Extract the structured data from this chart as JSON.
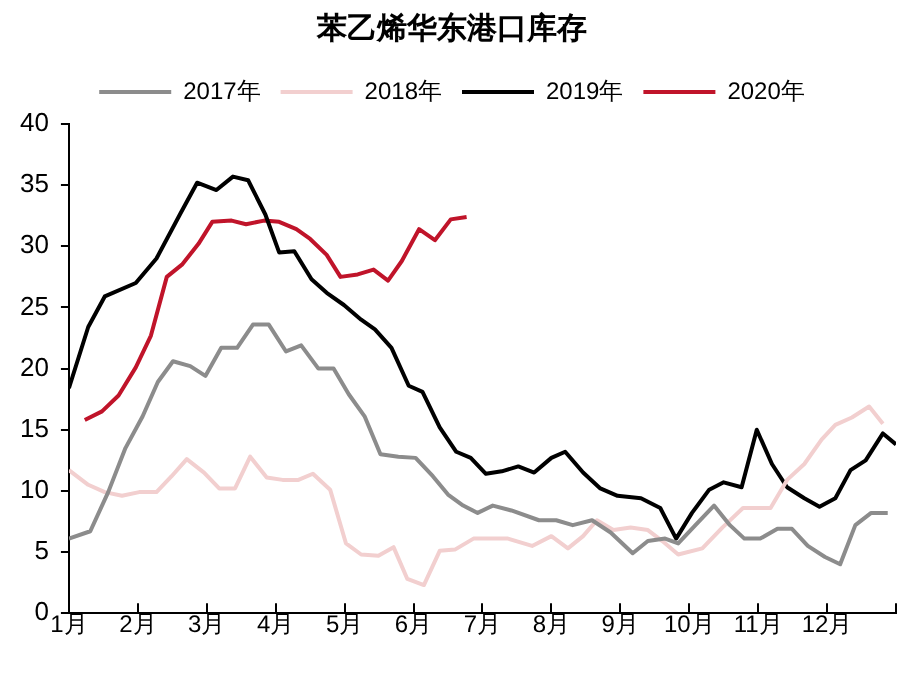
{
  "chart_data": {
    "type": "line",
    "title": "苯乙烯华东港口库存",
    "legend": "top",
    "grid": false,
    "marker": "none",
    "line_style": "solid",
    "xlim": [
      1,
      13
    ],
    "xticks": [
      {
        "value": 1,
        "label": "1月"
      },
      {
        "value": 2,
        "label": "2月"
      },
      {
        "value": 3,
        "label": "3月"
      },
      {
        "value": 4,
        "label": "4月"
      },
      {
        "value": 5,
        "label": "5月"
      },
      {
        "value": 6,
        "label": "6月"
      },
      {
        "value": 7,
        "label": "7月"
      },
      {
        "value": 8,
        "label": "8月"
      },
      {
        "value": 9,
        "label": "9月"
      },
      {
        "value": 10,
        "label": "10月"
      },
      {
        "value": 11,
        "label": "11月"
      },
      {
        "value": 12,
        "label": "12月"
      },
      {
        "value": 13,
        "label": null
      }
    ],
    "ylim": [
      0,
      40
    ],
    "yticks": [
      0,
      5,
      10,
      15,
      20,
      25,
      30,
      35,
      40
    ],
    "series": [
      {
        "name": "2017年",
        "color": "#8c8c8c",
        "x": [
          1,
          1.31,
          1.57,
          1.82,
          2.07,
          2.29,
          2.51,
          2.76,
          2.98,
          3.21,
          3.44,
          3.67,
          3.9,
          4.15,
          4.37,
          4.62,
          4.84,
          5.06,
          5.29,
          5.52,
          5.78,
          6.03,
          6.28,
          6.5,
          6.72,
          6.93,
          7.15,
          7.42,
          7.82,
          8.07,
          8.31,
          8.59,
          8.86,
          9.18,
          9.4,
          9.65,
          9.84,
          10.09,
          10.36,
          10.59,
          10.8,
          11.03,
          11.28,
          11.49,
          11.72,
          11.97,
          12.19,
          12.41,
          12.64,
          12.88
        ],
        "values": [
          6.1,
          6.7,
          9.9,
          13.5,
          16.1,
          18.9,
          20.6,
          20.2,
          19.4,
          21.7,
          21.7,
          23.6,
          23.6,
          21.4,
          21.9,
          20,
          20,
          17.9,
          16.1,
          13,
          12.8,
          12.7,
          11.2,
          9.7,
          8.8,
          8.2,
          8.8,
          8.4,
          7.6,
          7.6,
          7.2,
          7.6,
          6.6,
          4.9,
          5.9,
          6.1,
          5.7,
          7.2,
          8.8,
          7.2,
          6.1,
          6.1,
          6.9,
          6.9,
          5.5,
          4.6,
          4,
          7.2,
          8.2,
          8.2
        ]
      },
      {
        "name": "2018年",
        "color": "#f2cfcf",
        "x": [
          1,
          1.28,
          1.52,
          1.77,
          2.02,
          2.27,
          2.49,
          2.71,
          2.96,
          3.18,
          3.41,
          3.63,
          3.87,
          4.1,
          4.33,
          4.54,
          4.79,
          5.02,
          5.24,
          5.49,
          5.71,
          5.91,
          6.15,
          6.38,
          6.6,
          6.87,
          7.08,
          7.37,
          7.72,
          8,
          8.24,
          8.46,
          8.66,
          8.9,
          9.15,
          9.4,
          9.61,
          9.84,
          10.19,
          10.48,
          10.78,
          11.18,
          11.42,
          11.67,
          11.92,
          12.12,
          12.36,
          12.61,
          12.81
        ],
        "values": [
          11.7,
          10.5,
          9.9,
          9.6,
          9.9,
          9.9,
          11.2,
          12.6,
          11.5,
          10.2,
          10.2,
          12.8,
          11.1,
          10.9,
          10.9,
          11.4,
          10.1,
          5.7,
          4.8,
          4.7,
          5.4,
          2.8,
          2.3,
          5.1,
          5.2,
          6.1,
          6.1,
          6.1,
          5.5,
          6.3,
          5.3,
          6.3,
          7.6,
          6.8,
          7,
          6.8,
          5.9,
          4.8,
          5.3,
          7,
          8.6,
          8.6,
          10.9,
          12.2,
          14.2,
          15.4,
          16,
          16.9,
          15.5
        ]
      },
      {
        "name": "2019年",
        "color": "#000000",
        "x": [
          1,
          1.28,
          1.52,
          1.97,
          2.27,
          2.61,
          2.86,
          3.14,
          3.38,
          3.6,
          3.85,
          4.05,
          4.27,
          4.52,
          4.74,
          4.99,
          5.24,
          5.44,
          5.68,
          5.93,
          6.13,
          6.38,
          6.62,
          6.83,
          7.05,
          7.28,
          7.52,
          7.75,
          8,
          8.2,
          8.46,
          8.71,
          8.96,
          9.3,
          9.58,
          9.81,
          10.04,
          10.29,
          10.5,
          10.76,
          10.98,
          11.2,
          11.42,
          11.67,
          11.89,
          12.12,
          12.34,
          12.56,
          12.81,
          13
        ],
        "values": [
          18.4,
          23.4,
          25.9,
          27,
          29,
          32.6,
          35.2,
          34.6,
          35.7,
          35.4,
          32.6,
          29.5,
          29.6,
          27.3,
          26.2,
          25.2,
          24,
          23.2,
          21.7,
          18.6,
          18.1,
          15.2,
          13.2,
          12.7,
          11.4,
          11.6,
          12,
          11.5,
          12.7,
          13.2,
          11.5,
          10.2,
          9.6,
          9.4,
          8.6,
          6.1,
          8.2,
          10.1,
          10.7,
          10.3,
          15,
          12.2,
          10.3,
          9.4,
          8.7,
          9.4,
          11.7,
          12.5,
          14.7,
          13.8
        ]
      },
      {
        "name": "2020年",
        "color": "#c0142a",
        "x": [
          1.23,
          1.48,
          1.72,
          1.97,
          2.19,
          2.42,
          2.64,
          2.88,
          3.08,
          3.36,
          3.57,
          3.83,
          4.05,
          4.3,
          4.5,
          4.74,
          4.94,
          5.19,
          5.42,
          5.63,
          5.83,
          6.08,
          6.31,
          6.54,
          6.77
        ],
        "values": [
          15.8,
          16.5,
          17.8,
          20.1,
          22.7,
          27.5,
          28.5,
          30.2,
          32,
          32.1,
          31.8,
          32.1,
          32,
          31.4,
          30.6,
          29.3,
          27.5,
          27.7,
          28.1,
          27.2,
          28.8,
          31.4,
          30.5,
          32.2,
          32.4
        ]
      }
    ]
  }
}
